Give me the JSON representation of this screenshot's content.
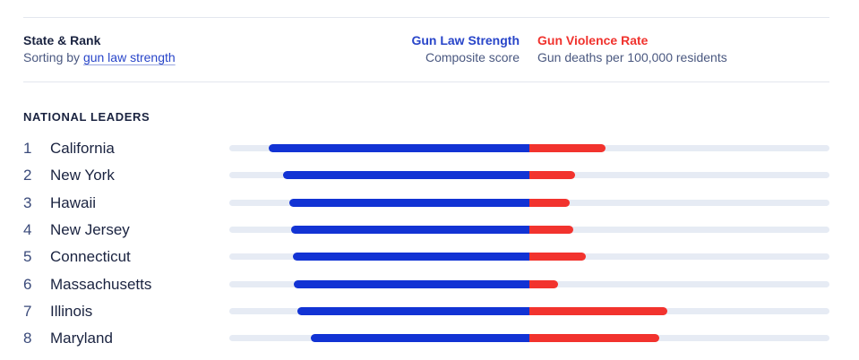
{
  "header": {
    "title": "State & Rank",
    "sort_prefix": "Sorting by ",
    "sort_link": "gun law strength",
    "law_title": "Gun Law Strength",
    "law_sub": "Composite score",
    "gun_title": "Gun Violence Rate",
    "gun_sub": "Gun deaths per 100,000 residents"
  },
  "section_label": "NATIONAL LEADERS",
  "colors": {
    "law": "#1233d4",
    "violence": "#f2332e",
    "track": "#e6ebf4"
  },
  "rows": [
    {
      "rank": "1",
      "state": "California",
      "law_fraction": 0.868,
      "violence_fraction": 0.254
    },
    {
      "rank": "2",
      "state": "New York",
      "law_fraction": 0.82,
      "violence_fraction": 0.152
    },
    {
      "rank": "3",
      "state": "Hawaii",
      "law_fraction": 0.799,
      "violence_fraction": 0.134
    },
    {
      "rank": "4",
      "state": "New Jersey",
      "law_fraction": 0.793,
      "violence_fraction": 0.146
    },
    {
      "rank": "5",
      "state": "Connecticut",
      "law_fraction": 0.787,
      "violence_fraction": 0.188
    },
    {
      "rank": "6",
      "state": "Massachusetts",
      "law_fraction": 0.784,
      "violence_fraction": 0.096
    },
    {
      "rank": "7",
      "state": "Illinois",
      "law_fraction": 0.772,
      "violence_fraction": 0.46
    },
    {
      "rank": "8",
      "state": "Maryland",
      "law_fraction": 0.728,
      "violence_fraction": 0.433
    }
  ]
}
